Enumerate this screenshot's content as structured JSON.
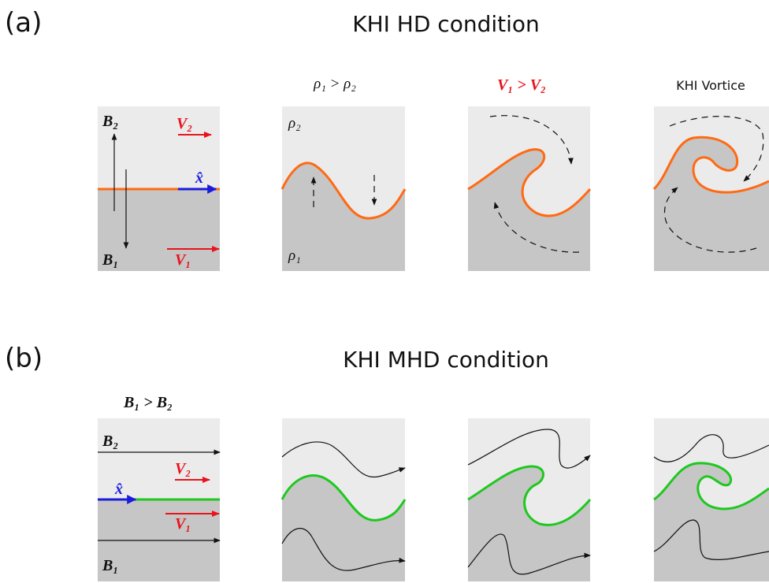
{
  "panel_a": {
    "label": "(a)",
    "title": "KHI HD condition",
    "column_titles": [
      "ρ₁ > ρ₂",
      "V₁ > V₂",
      "KHI Vortice"
    ],
    "setup_labels": {
      "b2": "B₂",
      "v2": "V₂",
      "x": "x̂",
      "b1": "B₁",
      "v1": "V₁"
    },
    "density_labels": [
      "ρ₂",
      "ρ₁"
    ]
  },
  "panel_b": {
    "label": "(b)",
    "title": "KHI MHD condition",
    "column_title": "B₁ > B₂",
    "setup_labels": {
      "b2": "B₂",
      "v2": "V₂",
      "x": "x̂",
      "v1": "V₁",
      "b1": "B₁"
    }
  }
}
